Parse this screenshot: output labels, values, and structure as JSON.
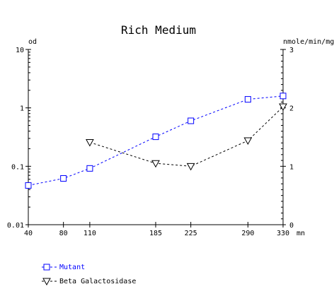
{
  "chart_data": {
    "type": "line",
    "title": "Rich Medium",
    "x_unit_label": "mn",
    "x_ticks": [
      40,
      80,
      110,
      185,
      225,
      290,
      330
    ],
    "x_range": [
      40,
      330
    ],
    "left_axis": {
      "label": "od",
      "scale": "log",
      "range": [
        0.01,
        10
      ],
      "ticks": [
        {
          "value": 0.01,
          "label": "0.01"
        },
        {
          "value": 0.1,
          "label": "0.1"
        },
        {
          "value": 1,
          "label": "1"
        },
        {
          "value": 10,
          "label": "10"
        }
      ]
    },
    "right_axis": {
      "label": "nmole/min/mg",
      "scale": "linear",
      "range": [
        0,
        3
      ],
      "ticks": [
        {
          "value": 0,
          "label": "0"
        },
        {
          "value": 1,
          "label": "1"
        },
        {
          "value": 2,
          "label": "2"
        },
        {
          "value": 3,
          "label": "3"
        }
      ]
    },
    "series": [
      {
        "name": "Mutant",
        "axis": "left",
        "marker": "square",
        "color": "#0000ff",
        "points": [
          [
            40,
            0.047
          ],
          [
            80,
            0.062
          ],
          [
            110,
            0.092
          ],
          [
            185,
            0.32
          ],
          [
            225,
            0.6
          ],
          [
            290,
            1.4
          ],
          [
            330,
            1.6
          ]
        ]
      },
      {
        "name": "Beta Galactosidase",
        "axis": "right",
        "marker": "triangle-down",
        "color": "#000000",
        "points": [
          [
            110,
            1.41
          ],
          [
            185,
            1.05
          ],
          [
            225,
            1.0
          ],
          [
            290,
            1.44
          ],
          [
            330,
            2.02
          ]
        ]
      }
    ],
    "legend_position": "bottom-left",
    "grid": false
  }
}
